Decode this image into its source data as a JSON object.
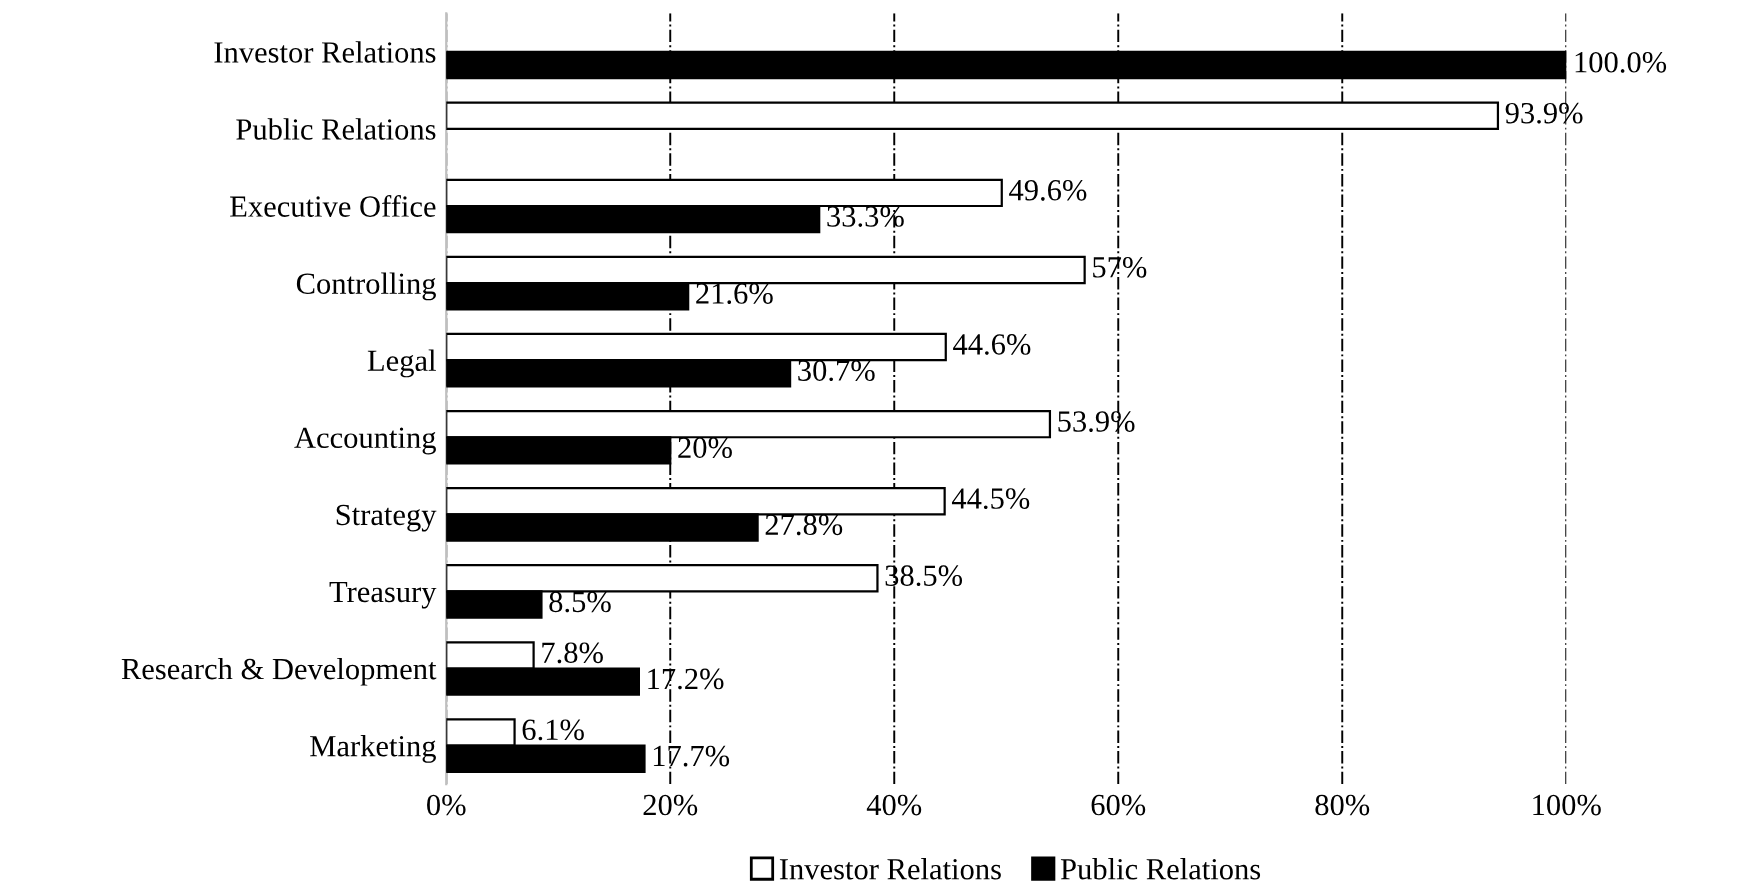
{
  "chart_data": {
    "type": "bar",
    "orientation": "horizontal",
    "categories": [
      "Investor Relations",
      "Public Relations",
      "Executive Office",
      "Controlling",
      "Legal",
      "Accounting",
      "Strategy",
      "Treasury",
      "Research & Development",
      "Marketing"
    ],
    "series": [
      {
        "name": "Investor Relations",
        "color": "#ffffff",
        "values": [
          null,
          93.9,
          49.6,
          57,
          44.6,
          53.9,
          44.5,
          38.5,
          7.8,
          6.1
        ],
        "value_labels": [
          null,
          "93.9%",
          "49.6%",
          "57%",
          "44.6%",
          "53.9%",
          "44.5%",
          "38.5%",
          "7.8%",
          "6.1%"
        ]
      },
      {
        "name": "Public Relations",
        "color": "#000000",
        "values": [
          100.0,
          null,
          33.3,
          21.6,
          30.7,
          20,
          27.8,
          8.5,
          17.2,
          17.7
        ],
        "value_labels": [
          "100.0%",
          null,
          "33.3%",
          "21.6%",
          "30.7%",
          "20%",
          "27.8%",
          "8.5%",
          "17.2%",
          "17.7%"
        ]
      }
    ],
    "xlim": [
      0,
      100
    ],
    "xticks": [
      {
        "value": 0,
        "label": "0%"
      },
      {
        "value": 20,
        "label": "20%"
      },
      {
        "value": 40,
        "label": "40%"
      },
      {
        "value": 60,
        "label": "60%"
      },
      {
        "value": 80,
        "label": "80%"
      },
      {
        "value": 100,
        "label": "100%"
      }
    ],
    "grid": "x",
    "legend": "bottom"
  }
}
